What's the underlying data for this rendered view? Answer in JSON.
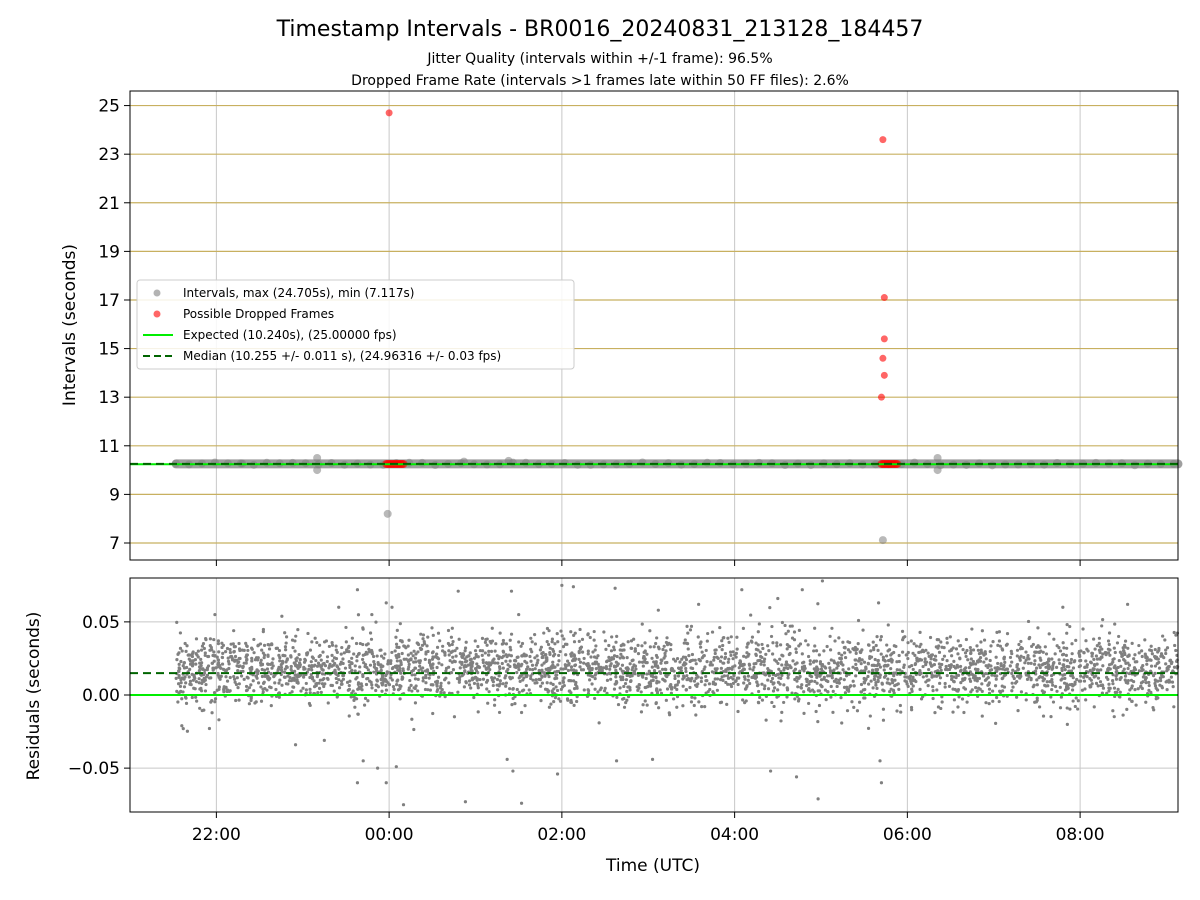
{
  "title": "Timestamp Intervals - BR0016_20240831_213128_184457",
  "subtitle_1": "Jitter Quality (intervals within +/-1 frame): 96.5%",
  "subtitle_2": "Dropped Frame Rate (intervals >1 frames late within 50 FF files): 2.6%",
  "colors": {
    "intervals": "#808080",
    "dropped": "#ff0000",
    "expected": "#00ee00",
    "median": "#006400",
    "hline": "#c8b060",
    "grid": "#c8c8c8"
  },
  "chart_data": [
    {
      "type": "scatter",
      "ylabel": "Intervals (seconds)",
      "xlim": [
        "21:00",
        "09:08"
      ],
      "ylim": [
        6.3,
        25.6
      ],
      "yticks": [
        7,
        9,
        11,
        13,
        15,
        17,
        19,
        21,
        23,
        25
      ],
      "xticks": [
        "22:00",
        "00:00",
        "02:00",
        "04:00",
        "06:00",
        "08:00"
      ],
      "horizontal_lines": [
        7,
        9,
        11,
        13,
        15,
        17,
        19,
        21,
        23,
        25
      ],
      "legend": {
        "position": "center-left",
        "entries": [
          {
            "label": "Intervals, max (24.705s), min (7.117s)",
            "kind": "marker",
            "color": "#808080"
          },
          {
            "label": "Possible Dropped Frames",
            "kind": "marker",
            "color": "#ff0000"
          },
          {
            "label": "Expected (10.240s), (25.00000 fps)",
            "kind": "line",
            "color": "#00ee00"
          },
          {
            "label": "Median (10.255 +/- 0.011 s), (24.96316 +/- 0.03 fps)",
            "kind": "dashed",
            "color": "#006400"
          }
        ]
      },
      "series": [
        {
          "name": "Intervals, max (24.705s), min (7.117s)",
          "range": {
            "x": [
              "21:32",
              "09:08"
            ],
            "y": 10.255
          },
          "points": [
            {
              "x": "23:59",
              "y": 8.2
            },
            {
              "x": "05:43",
              "y": 7.12
            },
            {
              "x": "22:18",
              "y": 10.27
            },
            {
              "x": "23:10",
              "y": 10.5
            },
            {
              "x": "23:10",
              "y": 10.0
            },
            {
              "x": "00:52",
              "y": 10.35
            },
            {
              "x": "01:23",
              "y": 10.38
            },
            {
              "x": "06:21",
              "y": 10.5
            },
            {
              "x": "06:21",
              "y": 10.0
            }
          ]
        },
        {
          "name": "Possible Dropped Frames",
          "cluster_y": 10.25,
          "clusters": [
            [
              "23:58",
              "00:10"
            ],
            [
              "05:42",
              "05:53"
            ]
          ],
          "points": [
            {
              "x": "00:00",
              "y": 24.7
            },
            {
              "x": "05:43",
              "y": 23.6
            },
            {
              "x": "05:44",
              "y": 17.1
            },
            {
              "x": "05:44",
              "y": 15.4
            },
            {
              "x": "05:43",
              "y": 14.6
            },
            {
              "x": "05:44",
              "y": 13.9
            },
            {
              "x": "05:42",
              "y": 13.0
            }
          ]
        },
        {
          "name": "Expected (10.240s), (25.00000 fps)",
          "y": 10.24
        },
        {
          "name": "Median (10.255 +/- 0.011 s), (24.96316 +/- 0.03 fps)",
          "y": 10.255
        }
      ]
    },
    {
      "type": "scatter",
      "xlabel": "Time (UTC)",
      "ylabel": "Residuals (seconds)",
      "xlim": [
        "21:00",
        "09:08"
      ],
      "ylim": [
        -0.08,
        0.08
      ],
      "yticks": [
        -0.05,
        0.0,
        0.05
      ],
      "ytick_labels": [
        "−0.05",
        "0.00",
        "0.05"
      ],
      "xticks": [
        "22:00",
        "00:00",
        "02:00",
        "04:00",
        "06:00",
        "08:00"
      ],
      "expected_residual": 0.0,
      "median_residual": 0.015,
      "residual_band": {
        "x": [
          "21:32",
          "09:08"
        ],
        "center": 0.017,
        "spread": 0.012,
        "count": 3500
      },
      "outliers": [
        {
          "x": "21:36",
          "y": -0.021
        },
        {
          "x": "21:37",
          "y": -0.023
        },
        {
          "x": "21:59",
          "y": 0.055
        },
        {
          "x": "22:55",
          "y": -0.034
        },
        {
          "x": "23:15",
          "y": -0.031
        },
        {
          "x": "23:25",
          "y": 0.06
        },
        {
          "x": "23:38",
          "y": 0.072
        },
        {
          "x": "23:38",
          "y": -0.06
        },
        {
          "x": "23:42",
          "y": -0.045
        },
        {
          "x": "23:48",
          "y": 0.055
        },
        {
          "x": "23:52",
          "y": -0.05
        },
        {
          "x": "23:58",
          "y": 0.063
        },
        {
          "x": "23:58",
          "y": -0.06
        },
        {
          "x": "00:02",
          "y": 0.06
        },
        {
          "x": "00:05",
          "y": -0.049
        },
        {
          "x": "00:10",
          "y": -0.075
        },
        {
          "x": "00:48",
          "y": 0.071
        },
        {
          "x": "00:53",
          "y": -0.073
        },
        {
          "x": "01:22",
          "y": -0.044
        },
        {
          "x": "01:25",
          "y": 0.071
        },
        {
          "x": "01:26",
          "y": -0.052
        },
        {
          "x": "01:30",
          "y": 0.055
        },
        {
          "x": "01:32",
          "y": -0.074
        },
        {
          "x": "01:57",
          "y": -0.054
        },
        {
          "x": "02:00",
          "y": 0.075
        },
        {
          "x": "02:08",
          "y": 0.074
        },
        {
          "x": "02:37",
          "y": 0.073
        },
        {
          "x": "02:38",
          "y": -0.045
        },
        {
          "x": "03:03",
          "y": -0.044
        },
        {
          "x": "03:07",
          "y": 0.058
        },
        {
          "x": "03:35",
          "y": 0.062
        },
        {
          "x": "04:05",
          "y": 0.072
        },
        {
          "x": "04:25",
          "y": -0.052
        },
        {
          "x": "04:30",
          "y": 0.066
        },
        {
          "x": "04:43",
          "y": -0.056
        },
        {
          "x": "04:47",
          "y": 0.072
        },
        {
          "x": "04:58",
          "y": -0.071
        },
        {
          "x": "05:01",
          "y": 0.078
        },
        {
          "x": "05:40",
          "y": 0.063
        },
        {
          "x": "05:41",
          "y": -0.045
        },
        {
          "x": "05:42",
          "y": -0.06
        },
        {
          "x": "07:48",
          "y": 0.06
        },
        {
          "x": "08:33",
          "y": 0.062
        }
      ]
    }
  ]
}
